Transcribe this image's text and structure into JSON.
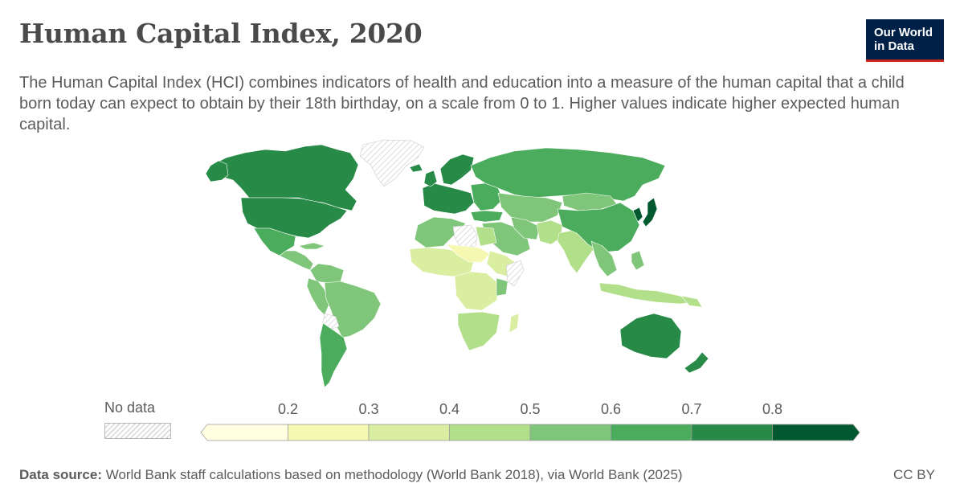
{
  "header": {
    "title": "Human Capital Index, 2020",
    "subtitle": "The Human Capital Index (HCI) combines indicators of health and education into a measure of the human capital that a child born today can expect to obtain by their 18th birthday, on a scale from 0 to 1. Higher values indicate higher expected human capital.",
    "logo_line1": "Our World",
    "logo_line2": "in Data"
  },
  "legend": {
    "no_data_label": "No data",
    "ticks": [
      "0.2",
      "0.3",
      "0.4",
      "0.5",
      "0.6",
      "0.7",
      "0.8"
    ],
    "bins": [
      {
        "from": null,
        "to": 0.2,
        "color": "#fffee0"
      },
      {
        "from": 0.2,
        "to": 0.3,
        "color": "#f5f8b1"
      },
      {
        "from": 0.3,
        "to": 0.4,
        "color": "#d9eea0"
      },
      {
        "from": 0.4,
        "to": 0.5,
        "color": "#b2df8a"
      },
      {
        "from": 0.5,
        "to": 0.6,
        "color": "#7fc57a"
      },
      {
        "from": 0.6,
        "to": 0.7,
        "color": "#4aac5c"
      },
      {
        "from": 0.7,
        "to": 0.8,
        "color": "#278a47"
      },
      {
        "from": 0.8,
        "to": null,
        "color": "#00592f"
      }
    ]
  },
  "footer": {
    "source_label": "Data source:",
    "source_text": " World Bank staff calculations based on methodology (World Bank 2018), via World Bank (2025)",
    "license": "CC BY"
  }
}
